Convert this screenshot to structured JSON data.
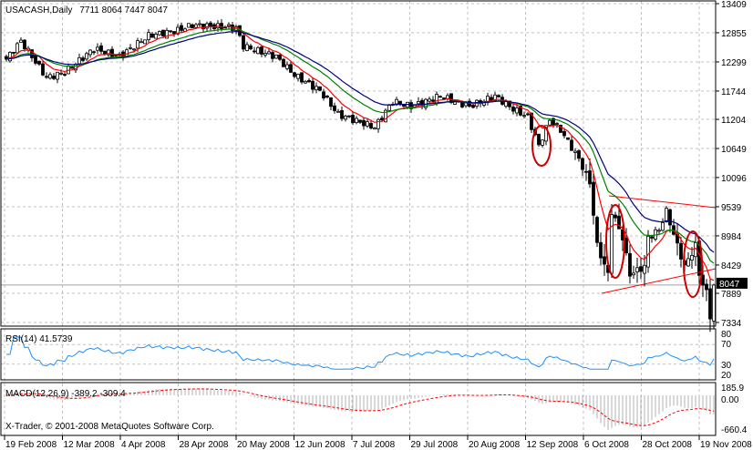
{
  "chart_data": {
    "type": "candlestick",
    "title": "USACASH,Daily",
    "ohlc_label": "7711 8064 7447 8047",
    "current_price": "8047",
    "price_ticks": [
      "13409",
      "12855",
      "12299",
      "11744",
      "11204",
      "10649",
      "10096",
      "9539",
      "8984",
      "8429",
      "7889",
      "7334"
    ],
    "price_range": [
      7334,
      13409
    ],
    "date_ticks": [
      "19 Feb 2008",
      "12 Mar 2008",
      "4 Apr 2008",
      "28 Apr 2008",
      "20 May 2008",
      "12 Jun 2008",
      "7 Jul 2008",
      "29 Jul 2008",
      "20 Aug 2008",
      "12 Sep 2008",
      "6 Oct 2008",
      "28 Oct 2008",
      "19 Nov 2008"
    ],
    "close_keypoints": [
      [
        0,
        12350
      ],
      [
        4,
        12700
      ],
      [
        11,
        12000
      ],
      [
        16,
        12100
      ],
      [
        24,
        12550
      ],
      [
        31,
        12400
      ],
      [
        39,
        12800
      ],
      [
        47,
        12900
      ],
      [
        51,
        13000
      ],
      [
        63,
        12950
      ],
      [
        65,
        12600
      ],
      [
        74,
        12400
      ],
      [
        79,
        12050
      ],
      [
        86,
        11750
      ],
      [
        91,
        11300
      ],
      [
        95,
        11200
      ],
      [
        101,
        11050
      ],
      [
        106,
        11550
      ],
      [
        111,
        11450
      ],
      [
        119,
        11650
      ],
      [
        127,
        11450
      ],
      [
        134,
        11650
      ],
      [
        139,
        11400
      ],
      [
        143,
        11250
      ],
      [
        146,
        10700
      ],
      [
        149,
        11200
      ],
      [
        152,
        11000
      ],
      [
        157,
        10450
      ],
      [
        160,
        10000
      ],
      [
        162,
        8800
      ],
      [
        165,
        8250
      ],
      [
        166,
        9450
      ],
      [
        169,
        8950
      ],
      [
        171,
        8250
      ],
      [
        175,
        8400
      ],
      [
        176,
        8950
      ],
      [
        179,
        9100
      ],
      [
        181,
        9450
      ],
      [
        184,
        8800
      ],
      [
        186,
        8400
      ],
      [
        189,
        8800
      ],
      [
        190,
        8250
      ],
      [
        192,
        7900
      ],
      [
        193,
        7450
      ],
      [
        194,
        8047
      ]
    ],
    "moving_averages": {
      "colors": [
        "#ff0000",
        "#008000",
        "#000080"
      ]
    },
    "rsi": {
      "label": "RSI(14) 41.5739",
      "levels": [
        "80",
        "70",
        "30",
        "20"
      ],
      "color": "#1e90ff"
    },
    "macd": {
      "label": "MACD(12,26,9) -389.2 -309.4",
      "ticks": [
        "185.9",
        "0.00",
        "-660.4"
      ],
      "signal_color": "#ff0000"
    },
    "annotations": {
      "ellipse_color": "#cc0000",
      "trendline_color": "#ff0000"
    }
  },
  "copyright": "X-Trader, © 2001-2008 MetaQuotes Software Corp."
}
